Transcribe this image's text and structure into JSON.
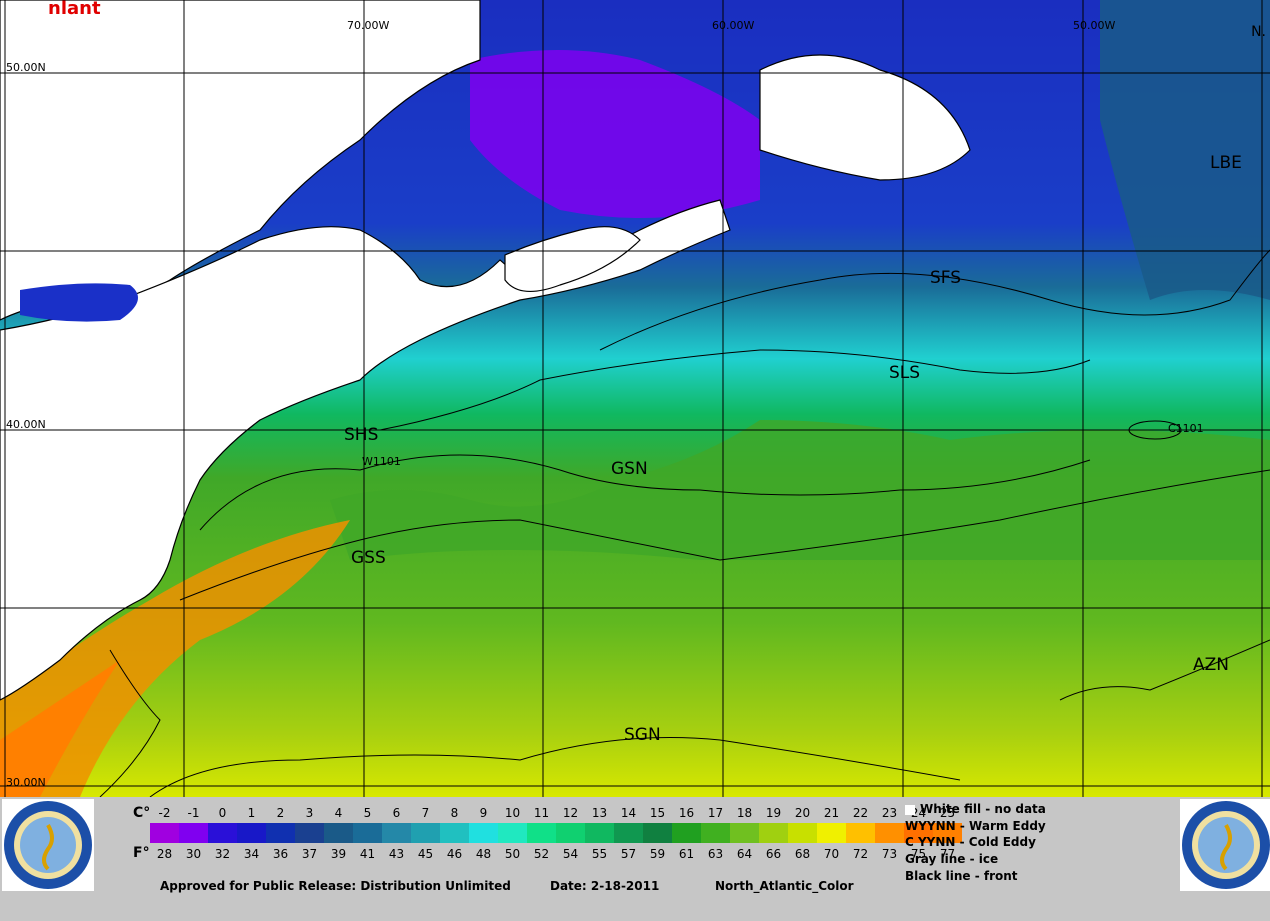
{
  "map": {
    "title": "nlant",
    "corner_label": "N.",
    "latitudes": [
      "50.00N",
      "40.00N",
      "30.00N"
    ],
    "longitudes": [
      "70.00W",
      "60.00W",
      "50.00W"
    ],
    "fronts": [
      "SFS",
      "SLS",
      "SHS",
      "GSN",
      "GSS",
      "SGN",
      "AZN",
      "LBE"
    ],
    "eddies": [
      "W1101",
      "C1101"
    ]
  },
  "legend": {
    "celsius_label": "C°",
    "fahrenheit_label": "F°",
    "celsius": [
      "-2",
      "-1",
      "0",
      "1",
      "2",
      "3",
      "4",
      "5",
      "6",
      "7",
      "8",
      "9",
      "10",
      "11",
      "12",
      "13",
      "14",
      "15",
      "16",
      "17",
      "18",
      "19",
      "20",
      "21",
      "22",
      "23",
      "24",
      "25"
    ],
    "fahrenheit": [
      "28",
      "30",
      "32",
      "34",
      "36",
      "37",
      "39",
      "41",
      "43",
      "45",
      "46",
      "48",
      "50",
      "52",
      "54",
      "55",
      "57",
      "59",
      "61",
      "63",
      "64",
      "66",
      "68",
      "70",
      "72",
      "73",
      "75",
      "77"
    ],
    "colors": [
      "#a000e0",
      "#8000f0",
      "#2a10d8",
      "#1818c8",
      "#1030b0",
      "#1a4090",
      "#1a5a88",
      "#1a6c98",
      "#2488a8",
      "#20a0b0",
      "#20c0c0",
      "#20e0e0",
      "#20e8c0",
      "#10e088",
      "#10d070",
      "#10b860",
      "#109850",
      "#108040",
      "#20a020",
      "#40b020",
      "#70c020",
      "#a0d010",
      "#c8e000",
      "#f0f000",
      "#ffc000",
      "#ff9000",
      "#ff7000",
      "#ff8000"
    ],
    "key": {
      "white_fill": "White fill -  no data",
      "warm_eddy": "WYYNN - Warm Eddy",
      "cold_eddy": "C YYNN - Cold Eddy",
      "gray_line": "Gray line - ice",
      "black_line": "Black line - front"
    },
    "approval": "Approved for Public Release: Distribution Unlimited",
    "date": "Date: 2-18-2011",
    "product": "North_Atlantic_Color"
  }
}
